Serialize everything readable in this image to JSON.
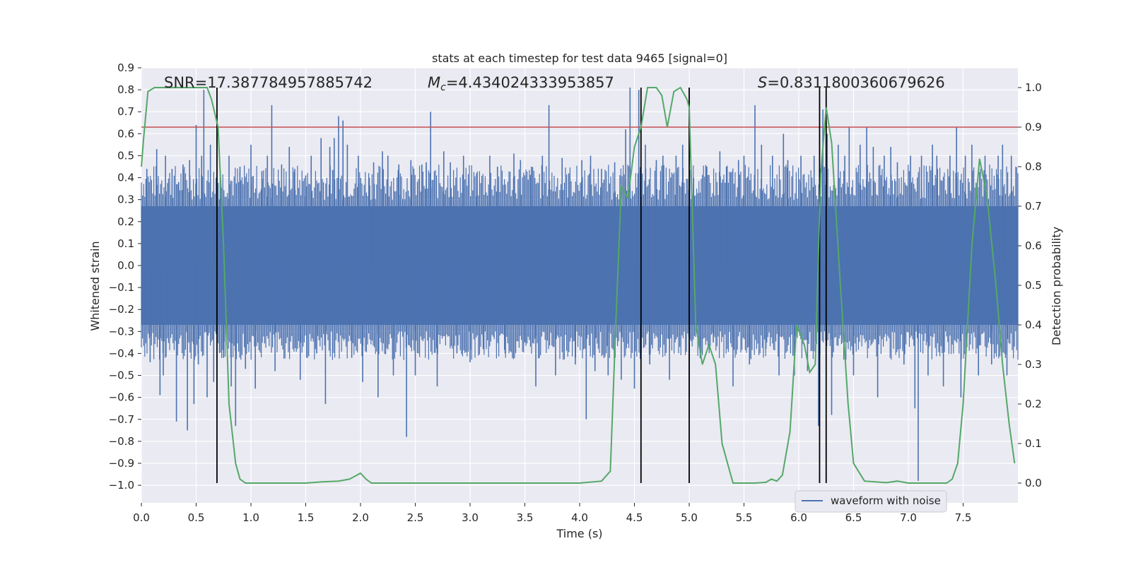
{
  "chart_data": {
    "type": "line",
    "title": "stats at each timestep for test data 9465 [signal=0]",
    "xlabel": "Time (s)",
    "ylabel": "Whitened strain",
    "y2label": "Detection probability",
    "xlim": [
      0.0,
      8.0
    ],
    "ylim": [
      -1.08,
      0.9
    ],
    "y2lim": [
      -0.05,
      1.05
    ],
    "xticks": [
      "0.0",
      "0.5",
      "1.0",
      "1.5",
      "2.0",
      "2.5",
      "3.0",
      "3.5",
      "4.0",
      "4.5",
      "5.0",
      "5.5",
      "6.0",
      "6.5",
      "7.0",
      "7.5"
    ],
    "yticks": [
      "0.9",
      "0.8",
      "0.7",
      "0.6",
      "0.5",
      "0.4",
      "0.3",
      "0.2",
      "0.1",
      "0.0",
      "−0.1",
      "−0.2",
      "−0.3",
      "−0.4",
      "−0.5",
      "−0.6",
      "−0.7",
      "−0.8",
      "−0.9",
      "−1.0"
    ],
    "y2ticks": [
      "1.0",
      "0.9",
      "0.8",
      "0.7",
      "0.6",
      "0.5",
      "0.4",
      "0.3",
      "0.2",
      "0.1",
      "0.0"
    ],
    "grid": true,
    "legend": {
      "placement": "lower-right",
      "entries": [
        "waveform with noise"
      ]
    },
    "annotations": {
      "snr": "SNR=17.387784957885742",
      "mc_label": "M",
      "mc_sub": "c",
      "mc_value": "=4.434024333953857",
      "s_label": "S",
      "s_value": "=0.8311800360679626"
    },
    "threshold_probability": 0.9,
    "vertical_markers_s": [
      0.69,
      4.56,
      5.0,
      6.19,
      6.25
    ],
    "series": [
      {
        "name": "waveform with noise",
        "color": "#4c72b0",
        "description_only": false,
        "spikes": [
          [
            0.05,
            0.44
          ],
          [
            0.08,
            -0.44
          ],
          [
            0.14,
            0.53
          ],
          [
            0.17,
            -0.59
          ],
          [
            0.2,
            -0.5
          ],
          [
            0.22,
            0.5
          ],
          [
            0.28,
            0.44
          ],
          [
            0.32,
            -0.71
          ],
          [
            0.34,
            0.38
          ],
          [
            0.38,
            0.46
          ],
          [
            0.42,
            -0.75
          ],
          [
            0.44,
            0.48
          ],
          [
            0.48,
            -0.63
          ],
          [
            0.5,
            0.64
          ],
          [
            0.52,
            -0.45
          ],
          [
            0.55,
            0.5
          ],
          [
            0.57,
            0.8
          ],
          [
            0.6,
            -0.6
          ],
          [
            0.63,
            0.55
          ],
          [
            0.66,
            -0.53
          ],
          [
            0.72,
            0.4
          ],
          [
            0.75,
            -0.42
          ],
          [
            0.8,
            0.5
          ],
          [
            0.82,
            -0.55
          ],
          [
            0.86,
            -0.73
          ],
          [
            0.9,
            0.45
          ],
          [
            0.95,
            -0.47
          ],
          [
            1.0,
            0.55
          ],
          [
            1.04,
            -0.56
          ],
          [
            1.1,
            0.43
          ],
          [
            1.15,
            0.5
          ],
          [
            1.19,
            0.73
          ],
          [
            1.22,
            -0.48
          ],
          [
            1.28,
            0.46
          ],
          [
            1.35,
            0.54
          ],
          [
            1.4,
            0.44
          ],
          [
            1.45,
            -0.52
          ],
          [
            1.5,
            0.41
          ],
          [
            1.55,
            0.5
          ],
          [
            1.6,
            -0.4
          ],
          [
            1.64,
            0.58
          ],
          [
            1.68,
            -0.63
          ],
          [
            1.72,
            0.54
          ],
          [
            1.76,
            0.58
          ],
          [
            1.8,
            0.68
          ],
          [
            1.84,
            0.66
          ],
          [
            1.88,
            0.55
          ],
          [
            1.92,
            -0.42
          ],
          [
            1.98,
            0.5
          ],
          [
            2.02,
            -0.53
          ],
          [
            2.08,
            0.4
          ],
          [
            2.12,
            0.47
          ],
          [
            2.16,
            -0.6
          ],
          [
            2.2,
            0.52
          ],
          [
            2.25,
            0.5
          ],
          [
            2.3,
            -0.5
          ],
          [
            2.35,
            0.46
          ],
          [
            2.42,
            -0.78
          ],
          [
            2.46,
            0.48
          ],
          [
            2.5,
            -0.5
          ],
          [
            2.56,
            0.46
          ],
          [
            2.6,
            0.47
          ],
          [
            2.64,
            0.7
          ],
          [
            2.7,
            -0.55
          ],
          [
            2.76,
            0.52
          ],
          [
            2.82,
            0.47
          ],
          [
            2.88,
            -0.4
          ],
          [
            2.94,
            0.5
          ],
          [
            3.0,
            -0.44
          ],
          [
            3.06,
            0.42
          ],
          [
            3.12,
            -0.38
          ],
          [
            3.18,
            0.5
          ],
          [
            3.25,
            0.45
          ],
          [
            3.32,
            -0.4
          ],
          [
            3.4,
            0.51
          ],
          [
            3.46,
            0.48
          ],
          [
            3.5,
            -0.35
          ],
          [
            3.56,
            0.45
          ],
          [
            3.6,
            -0.55
          ],
          [
            3.66,
            0.5
          ],
          [
            3.72,
            0.73
          ],
          [
            3.78,
            -0.5
          ],
          [
            3.84,
            0.49
          ],
          [
            3.9,
            0.42
          ],
          [
            3.96,
            -0.45
          ],
          [
            4.02,
            0.48
          ],
          [
            4.06,
            -0.7
          ],
          [
            4.1,
            0.5
          ],
          [
            4.14,
            -0.48
          ],
          [
            4.2,
            0.44
          ],
          [
            4.26,
            -0.5
          ],
          [
            4.32,
            0.47
          ],
          [
            4.38,
            -0.52
          ],
          [
            4.42,
            0.62
          ],
          [
            4.46,
            0.81
          ],
          [
            4.5,
            -0.56
          ],
          [
            4.54,
            0.8
          ],
          [
            4.6,
            0.55
          ],
          [
            4.64,
            -0.45
          ],
          [
            4.7,
            0.48
          ],
          [
            4.76,
            0.5
          ],
          [
            4.82,
            -0.52
          ],
          [
            4.88,
            0.5
          ],
          [
            4.94,
            0.55
          ],
          [
            5.0,
            -0.6
          ],
          [
            5.04,
            0.4
          ],
          [
            5.1,
            -0.4
          ],
          [
            5.16,
            0.45
          ],
          [
            5.22,
            -0.35
          ],
          [
            5.28,
            0.52
          ],
          [
            5.34,
            0.45
          ],
          [
            5.4,
            -0.55
          ],
          [
            5.45,
            0.48
          ],
          [
            5.5,
            0.5
          ],
          [
            5.55,
            -0.45
          ],
          [
            5.6,
            0.73
          ],
          [
            5.66,
            0.55
          ],
          [
            5.7,
            -0.38
          ],
          [
            5.76,
            0.5
          ],
          [
            5.82,
            -0.5
          ],
          [
            5.86,
            0.6
          ],
          [
            5.9,
            0.48
          ],
          [
            5.96,
            -0.5
          ],
          [
            6.02,
            0.5
          ],
          [
            6.08,
            -0.48
          ],
          [
            6.14,
            0.5
          ],
          [
            6.18,
            -0.73
          ],
          [
            6.22,
            0.71
          ],
          [
            6.26,
            0.6
          ],
          [
            6.3,
            -0.68
          ],
          [
            6.36,
            0.55
          ],
          [
            6.42,
            0.5
          ],
          [
            6.46,
            0.63
          ],
          [
            6.5,
            -0.5
          ],
          [
            6.56,
            0.55
          ],
          [
            6.62,
            0.63
          ],
          [
            6.68,
            0.54
          ],
          [
            6.72,
            -0.6
          ],
          [
            6.78,
            0.5
          ],
          [
            6.84,
            0.54
          ],
          [
            6.9,
            0.47
          ],
          [
            6.96,
            -0.45
          ],
          [
            7.02,
            0.5
          ],
          [
            7.06,
            -0.65
          ],
          [
            7.09,
            -0.98
          ],
          [
            7.12,
            0.5
          ],
          [
            7.18,
            -0.5
          ],
          [
            7.22,
            0.55
          ],
          [
            7.26,
            0.5
          ],
          [
            7.32,
            -0.55
          ],
          [
            7.38,
            0.5
          ],
          [
            7.44,
            0.63
          ],
          [
            7.48,
            -0.6
          ],
          [
            7.52,
            0.5
          ],
          [
            7.58,
            0.55
          ],
          [
            7.64,
            -0.5
          ],
          [
            7.7,
            0.5
          ],
          [
            7.76,
            -0.45
          ],
          [
            7.82,
            0.5
          ],
          [
            7.86,
            0.55
          ],
          [
            7.9,
            -0.5
          ],
          [
            7.94,
            0.5
          ]
        ]
      },
      {
        "name": "",
        "color": "#55a868",
        "axis": "right",
        "x": [
          0.0,
          0.02,
          0.06,
          0.12,
          0.2,
          0.3,
          0.4,
          0.5,
          0.6,
          0.64,
          0.7,
          0.75,
          0.8,
          0.86,
          0.9,
          0.95,
          1.0,
          1.2,
          1.5,
          1.65,
          1.8,
          1.9,
          2.0,
          2.05,
          2.1,
          2.2,
          2.5,
          3.0,
          3.5,
          4.0,
          4.2,
          4.28,
          4.33,
          4.38,
          4.44,
          4.5,
          4.56,
          4.62,
          4.7,
          4.75,
          4.8,
          4.86,
          4.92,
          4.98,
          5.0,
          5.06,
          5.12,
          5.18,
          5.24,
          5.3,
          5.4,
          5.6,
          5.7,
          5.75,
          5.8,
          5.85,
          5.92,
          5.98,
          6.05,
          6.1,
          6.15,
          6.2,
          6.25,
          6.3,
          6.38,
          6.45,
          6.5,
          6.6,
          6.8,
          6.9,
          7.0,
          7.2,
          7.35,
          7.4,
          7.45,
          7.5,
          7.58,
          7.65,
          7.72,
          7.8,
          7.86,
          7.92,
          7.97
        ],
        "values": [
          0.8,
          0.87,
          0.99,
          1.0,
          1.0,
          1.0,
          1.0,
          1.0,
          1.0,
          0.97,
          0.9,
          0.6,
          0.2,
          0.05,
          0.01,
          0.0,
          0.0,
          0.0,
          0.0,
          0.003,
          0.005,
          0.01,
          0.025,
          0.01,
          0.0,
          0.0,
          0.0,
          0.0,
          0.0,
          0.0,
          0.005,
          0.03,
          0.4,
          0.75,
          0.72,
          0.85,
          0.9,
          1.0,
          1.0,
          0.98,
          0.9,
          0.99,
          1.0,
          0.97,
          0.95,
          0.4,
          0.3,
          0.35,
          0.3,
          0.1,
          0.0,
          0.0,
          0.002,
          0.01,
          0.005,
          0.02,
          0.13,
          0.4,
          0.35,
          0.28,
          0.3,
          0.78,
          0.95,
          0.86,
          0.5,
          0.2,
          0.05,
          0.005,
          0.001,
          0.005,
          0.0,
          0.0,
          0.0,
          0.01,
          0.05,
          0.2,
          0.6,
          0.82,
          0.72,
          0.5,
          0.3,
          0.15,
          0.05
        ]
      }
    ]
  }
}
